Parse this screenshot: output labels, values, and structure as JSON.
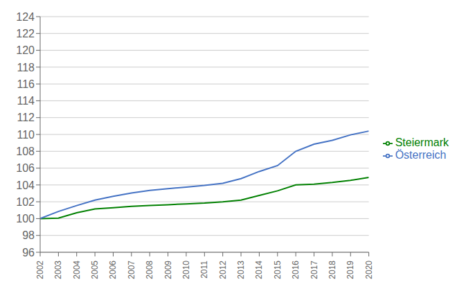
{
  "chart_data": {
    "type": "line",
    "x": [
      2002,
      2003,
      2004,
      2005,
      2006,
      2007,
      2008,
      2009,
      2010,
      2011,
      2012,
      2013,
      2014,
      2015,
      2016,
      2017,
      2018,
      2019,
      2020
    ],
    "series": [
      {
        "name": "Steiermark",
        "color": "#008000",
        "values": [
          100.0,
          100.05,
          100.7,
          101.15,
          101.3,
          101.45,
          101.55,
          101.65,
          101.75,
          101.85,
          102.0,
          102.2,
          102.75,
          103.3,
          104.0,
          104.1,
          104.3,
          104.55,
          104.9
        ]
      },
      {
        "name": "Österreich",
        "color": "#4472c4",
        "values": [
          100.0,
          100.85,
          101.55,
          102.2,
          102.65,
          103.05,
          103.35,
          103.55,
          103.75,
          103.95,
          104.2,
          104.75,
          105.6,
          106.3,
          108.0,
          108.85,
          109.3,
          109.95,
          110.4
        ]
      }
    ],
    "xlim": [
      2002,
      2020
    ],
    "xticks": [
      2002,
      2003,
      2004,
      2005,
      2006,
      2007,
      2008,
      2009,
      2010,
      2011,
      2012,
      2013,
      2014,
      2015,
      2016,
      2017,
      2018,
      2019,
      2020
    ],
    "ylim": [
      96,
      124
    ],
    "yticks": [
      96,
      98,
      100,
      102,
      104,
      106,
      108,
      110,
      112,
      114,
      116,
      118,
      120,
      122,
      124
    ],
    "grid": true,
    "legend": "right"
  }
}
